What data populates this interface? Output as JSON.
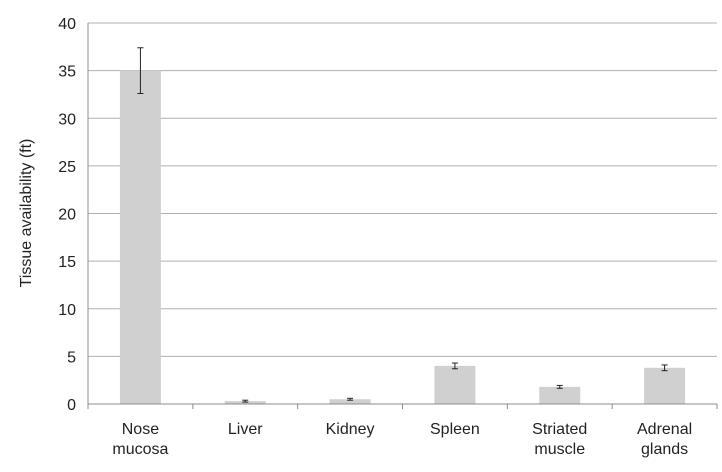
{
  "chart_data": {
    "type": "bar",
    "title": "",
    "xlabel": "",
    "ylabel": "Tissue availability (ft)",
    "categories": [
      [
        "Nose",
        "mucosa"
      ],
      [
        "Liver"
      ],
      [
        "Kidney"
      ],
      [
        "Spleen"
      ],
      [
        "Striated",
        "muscle"
      ],
      [
        "Adrenal",
        "glands"
      ]
    ],
    "values": [
      35,
      0.3,
      0.5,
      4.0,
      1.8,
      3.8
    ],
    "errors": [
      2.4,
      0.1,
      0.1,
      0.3,
      0.15,
      0.3
    ],
    "ylim": [
      0,
      40
    ],
    "yticks": [
      0,
      5,
      10,
      15,
      20,
      25,
      30,
      35,
      40
    ],
    "grid": true,
    "colors": {
      "bar": "#d0d0d0",
      "grid": "#b0b0b0",
      "axis": "#8c8c8c",
      "error_bar": "#222222"
    }
  }
}
